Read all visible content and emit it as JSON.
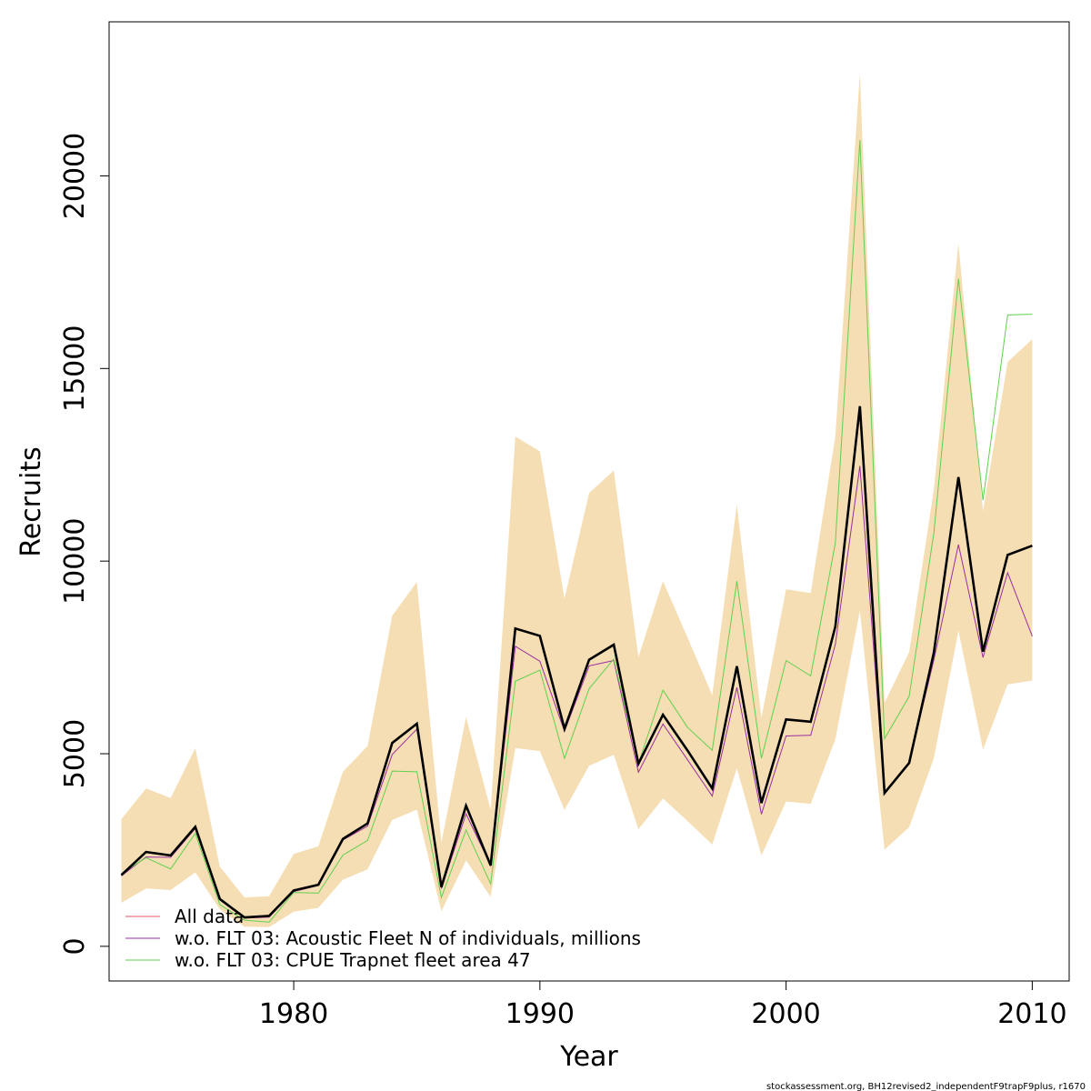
{
  "chart_data": {
    "type": "line",
    "xlabel": "Year",
    "ylabel": "Recruits",
    "xlim": [
      1972.5,
      2011.5
    ],
    "ylim": [
      -900,
      24000
    ],
    "x_ticks": [
      1980,
      1990,
      2000,
      2010
    ],
    "y_ticks": [
      0,
      5000,
      10000,
      15000,
      20000
    ],
    "x_tick_labels": [
      "1980",
      "1990",
      "2000",
      "2010"
    ],
    "y_tick_labels": [
      "0",
      "5000",
      "10000",
      "15000",
      "20000"
    ],
    "grid": false,
    "legend_position": "bottom-left",
    "band_color": "#f5deb3",
    "years": [
      1973,
      1974,
      1975,
      1976,
      1977,
      1978,
      1979,
      1980,
      1981,
      1982,
      1983,
      1984,
      1985,
      1986,
      1987,
      1988,
      1989,
      1990,
      1991,
      1992,
      1993,
      1994,
      1995,
      1996,
      1997,
      1998,
      1999,
      2000,
      2001,
      2002,
      2003,
      2004,
      2005,
      2006,
      2007,
      2008,
      2009,
      2010
    ],
    "band": {
      "upper": [
        3300,
        4100,
        3850,
        5150,
        2070,
        1270,
        1300,
        2400,
        2600,
        4530,
        5200,
        8580,
        9460,
        2700,
        5950,
        3550,
        13230,
        12850,
        9030,
        11770,
        12350,
        7510,
        9480,
        8010,
        6520,
        11470,
        5930,
        9270,
        9170,
        13250,
        22650,
        6320,
        7640,
        11850,
        18250,
        11300,
        15170,
        15760
      ],
      "lower": [
        1130,
        1500,
        1460,
        1920,
        960,
        510,
        500,
        900,
        1000,
        1730,
        2000,
        3280,
        3550,
        910,
        2230,
        1280,
        5150,
        5070,
        3540,
        4690,
        4970,
        3040,
        3840,
        3250,
        2640,
        4620,
        2360,
        3760,
        3700,
        5370,
        8710,
        2510,
        3090,
        4880,
        8190,
        5110,
        6800,
        6900
      ]
    },
    "series": [
      {
        "name": "All data",
        "color": "#df536b",
        "values": [
          1850,
          2450,
          2360,
          3100,
          1230,
          750,
          790,
          1450,
          1600,
          2790,
          3190,
          5280,
          5780,
          1540,
          3650,
          2100,
          8250,
          8060,
          5650,
          7440,
          7830,
          4740,
          6010,
          5080,
          4100,
          7270,
          3720,
          5890,
          5830,
          8300,
          14020,
          3980,
          4760,
          7620,
          12180,
          7650,
          10160,
          10400
        ]
      },
      {
        "name": "w.o. FLT 03: Acoustic Fleet  N of individuals, millions",
        "color": "#9a2ea0",
        "values": [
          1830,
          2320,
          2310,
          3060,
          1200,
          730,
          760,
          1420,
          1580,
          2760,
          3120,
          4980,
          5640,
          1500,
          3440,
          2100,
          7790,
          7400,
          5580,
          7280,
          7420,
          4520,
          5770,
          4840,
          3900,
          6720,
          3430,
          5460,
          5480,
          7840,
          12470,
          3990,
          4770,
          7430,
          10430,
          7500,
          9700,
          8050
        ]
      },
      {
        "name": "w.o. FLT 03: CPUE Trapnet fleet area 47",
        "color": "#61d04f",
        "values": [
          1890,
          2300,
          2010,
          2930,
          1080,
          680,
          630,
          1400,
          1380,
          2370,
          2750,
          4550,
          4530,
          1270,
          3020,
          1620,
          6880,
          7170,
          4880,
          6690,
          7460,
          4750,
          6650,
          5680,
          5090,
          9480,
          4880,
          7420,
          7020,
          10470,
          20930,
          5390,
          6490,
          10720,
          17330,
          11580,
          16390,
          16410
        ]
      }
    ],
    "overlay_line_color": "#000000"
  },
  "legend": {
    "items": [
      {
        "label": "All data",
        "color": "#df536b"
      },
      {
        "label": "w.o. FLT 03: Acoustic Fleet  N of individuals, millions",
        "color": "#9a2ea0"
      },
      {
        "label": "w.o. FLT 03: CPUE Trapnet fleet area 47",
        "color": "#61d04f"
      }
    ]
  },
  "footer": {
    "text": "stockassessment.org, BH12revised2_independentF9trapF9plus, r1670"
  }
}
